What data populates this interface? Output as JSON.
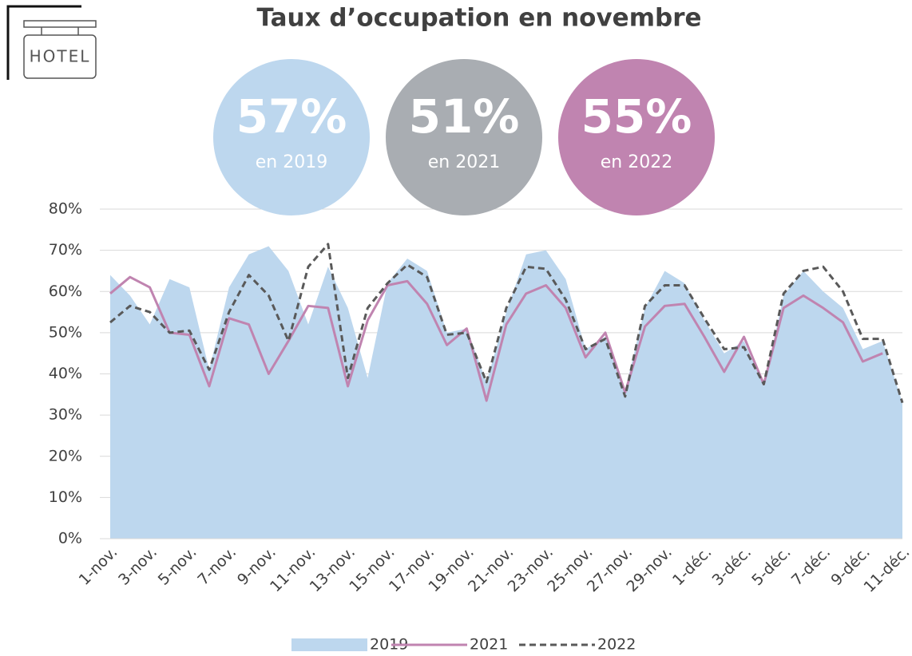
{
  "chart_data": {
    "type": "line",
    "title": "Taux d’occupation en novembre",
    "logo_text": "HOTEL",
    "kpis": [
      {
        "value": 57,
        "value_label": "57%",
        "caption": "en 2019",
        "color": "#bdd7ee"
      },
      {
        "value": 51,
        "value_label": "51%",
        "caption": "en 2021",
        "color": "#a9adb2"
      },
      {
        "value": 55,
        "value_label": "55%",
        "caption": "en 2022",
        "color": "#c084b0"
      }
    ],
    "categories": [
      "1-nov.",
      null,
      "3-nov.",
      null,
      "5-nov.",
      null,
      "7-nov.",
      null,
      "9-nov.",
      null,
      "11-nov.",
      null,
      "13-nov.",
      null,
      "15-nov.",
      null,
      "17-nov.",
      null,
      "19-nov.",
      null,
      "21-nov.",
      null,
      "23-nov.",
      null,
      "25-nov.",
      null,
      "27-nov.",
      null,
      "29-nov.",
      null,
      "1-déc.",
      null,
      "3-déc.",
      null,
      "5-déc.",
      null,
      "7-déc.",
      null,
      "9-déc.",
      null,
      "11-déc."
    ],
    "series": [
      {
        "name": "2019",
        "kind": "area",
        "color": "#bdd7ee",
        "values": [
          64,
          59,
          52,
          63,
          61,
          41,
          61,
          69,
          71,
          65,
          52,
          66,
          56,
          39,
          62,
          68,
          65,
          50,
          51,
          38,
          55,
          69,
          70,
          63,
          46,
          49,
          36,
          56,
          65,
          62,
          53,
          45,
          48,
          37,
          59,
          65,
          60,
          56,
          46,
          48,
          33
        ]
      },
      {
        "name": "2021",
        "kind": "line",
        "color": "#c084b0",
        "values": [
          59.5,
          63.5,
          61,
          50,
          49.5,
          37,
          53.5,
          52,
          40,
          48,
          56.5,
          56,
          37,
          53,
          61.5,
          62.5,
          57,
          47,
          51,
          33.5,
          52,
          59.5,
          61.5,
          56,
          44,
          50,
          35.5,
          51.5,
          56.5,
          57,
          49,
          40.5,
          49,
          37.5,
          56,
          59,
          56,
          52.5,
          43,
          45,
          null
        ]
      },
      {
        "name": "2022",
        "kind": "dashed",
        "color": "#595959",
        "values": [
          52.5,
          56.5,
          55,
          50,
          50.5,
          41,
          55,
          64,
          59,
          48,
          66,
          71.5,
          39,
          56,
          62,
          66.5,
          63.5,
          49.5,
          50,
          38,
          56,
          66,
          65.5,
          58,
          46,
          48.5,
          34.5,
          56.5,
          61.5,
          61.5,
          53.5,
          46,
          46.5,
          37.5,
          59.5,
          65,
          66,
          60,
          48.5,
          48.5,
          33
        ]
      }
    ],
    "ylim": [
      0,
      80
    ],
    "yticks": [
      {
        "value": 0,
        "label": "0%"
      },
      {
        "value": 10,
        "label": "10%"
      },
      {
        "value": 20,
        "label": "20%"
      },
      {
        "value": 30,
        "label": "30%"
      },
      {
        "value": 40,
        "label": "40%"
      },
      {
        "value": 50,
        "label": "50%"
      },
      {
        "value": 60,
        "label": "60%"
      },
      {
        "value": 70,
        "label": "70%"
      },
      {
        "value": 80,
        "label": "80%"
      }
    ],
    "grid": true,
    "legend": "bottom"
  }
}
